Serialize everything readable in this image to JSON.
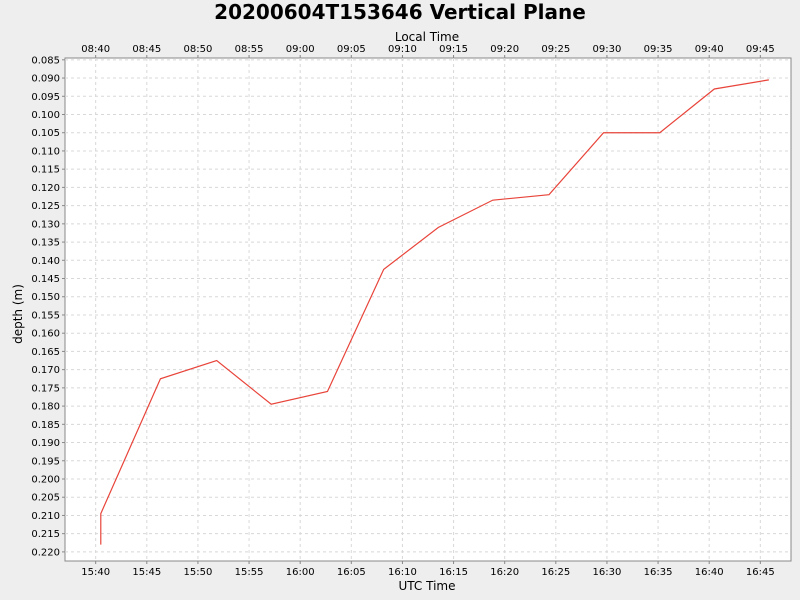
{
  "chart_data": {
    "type": "line",
    "title": "20200604T153646 Vertical Plane",
    "xlabel": "UTC Time",
    "x2label": "Local Time",
    "ylabel": "depth (m)",
    "y_inverted": true,
    "ylim": [
      0.0845,
      0.2225
    ],
    "xlim": [
      "15:37",
      "16:48"
    ],
    "grid": true,
    "line_color": "#e8443a",
    "x_ticks": [
      "15:40",
      "15:45",
      "15:50",
      "15:55",
      "16:00",
      "16:05",
      "16:10",
      "16:15",
      "16:20",
      "16:25",
      "16:30",
      "16:35",
      "16:40",
      "16:45"
    ],
    "x2_ticks": [
      "08:40",
      "08:45",
      "08:50",
      "08:55",
      "09:00",
      "09:05",
      "09:10",
      "09:15",
      "09:20",
      "09:25",
      "09:30",
      "09:35",
      "09:40",
      "09:45"
    ],
    "y_ticks": [
      "0.085",
      "0.090",
      "0.095",
      "0.100",
      "0.105",
      "0.110",
      "0.115",
      "0.120",
      "0.125",
      "0.130",
      "0.135",
      "0.140",
      "0.145",
      "0.150",
      "0.155",
      "0.160",
      "0.165",
      "0.170",
      "0.175",
      "0.180",
      "0.185",
      "0.190",
      "0.195",
      "0.200",
      "0.205",
      "0.210",
      "0.215",
      "0.220"
    ],
    "series": [
      {
        "x": [
          "15:40:30",
          "15:40:30",
          "15:46:20",
          "15:51:50",
          "15:57:10",
          "16:02:40",
          "16:08:10",
          "16:13:30",
          "16:18:50",
          "16:24:20",
          "16:29:40",
          "16:35:10",
          "16:40:30",
          "16:45:50"
        ],
        "values": [
          0.218,
          0.2095,
          0.1725,
          0.1675,
          0.1795,
          0.176,
          0.1425,
          0.131,
          0.1235,
          0.122,
          0.105,
          0.105,
          0.093,
          0.0905
        ]
      }
    ]
  }
}
